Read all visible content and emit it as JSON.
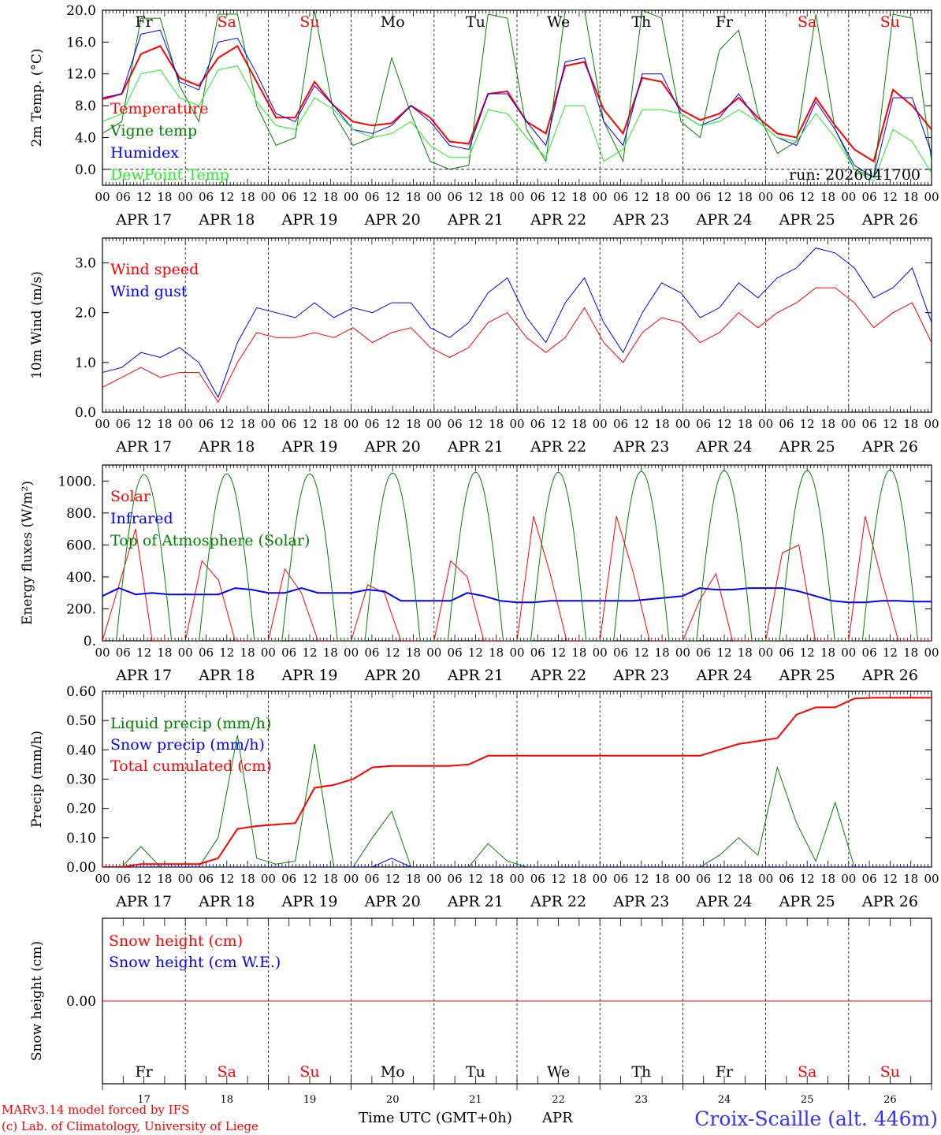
{
  "days": [
    {
      "abbr": "Fr",
      "num": "17",
      "date": "APR 17",
      "weekend": false
    },
    {
      "abbr": "Sa",
      "num": "18",
      "date": "APR 18",
      "weekend": true
    },
    {
      "abbr": "Su",
      "num": "19",
      "date": "APR 19",
      "weekend": true
    },
    {
      "abbr": "Mo",
      "num": "20",
      "date": "APR 20",
      "weekend": false
    },
    {
      "abbr": "Tu",
      "num": "21",
      "date": "APR 21",
      "weekend": false
    },
    {
      "abbr": "We",
      "num": "22",
      "date": "APR 22",
      "weekend": false
    },
    {
      "abbr": "Th",
      "num": "23",
      "date": "APR 23",
      "weekend": false
    },
    {
      "abbr": "Fr",
      "num": "24",
      "date": "APR 24",
      "weekend": false
    },
    {
      "abbr": "Sa",
      "num": "25",
      "date": "APR 25",
      "weekend": true
    },
    {
      "abbr": "Su",
      "num": "26",
      "date": "APR 26",
      "weekend": true
    }
  ],
  "hour_labels": [
    "00",
    "06",
    "12",
    "18"
  ],
  "final_hour_label": "00",
  "colors": {
    "red": "#ff0000",
    "green": "#008000",
    "blue": "#0000ff",
    "light_green": "#22ee22",
    "weekend": "#ff0000",
    "text": "#000000",
    "station": "#3333ff"
  },
  "footer": {
    "model_line": "MARv3.14 model forced by IFS",
    "credit_line": "(c) Lab. of Climatology, University of Liege",
    "axis_title": "Time UTC (GMT+0h)",
    "month": "APR",
    "station": "Croix-Scaille (alt. 446m)"
  },
  "chart_data": [
    {
      "id": "temperature",
      "type": "line",
      "ylabel": "2m Temp. (°C)",
      "ylim": [
        -2,
        20
      ],
      "yticks": [
        "0.0",
        "4.0",
        "8.0",
        "12.0",
        "16.0",
        "20.0"
      ],
      "ytick_values": [
        0,
        4,
        8,
        12,
        16,
        20
      ],
      "show_day_abbr": true,
      "annotation": "run: 2026041700",
      "zero_line": true,
      "x_step_hours": 6,
      "series": [
        {
          "name": "Temperature",
          "color": "#ff0000",
          "width": 2,
          "values": [
            8.8,
            9.5,
            14.5,
            15.5,
            11.5,
            10.5,
            14.0,
            15.5,
            11.0,
            6.5,
            6.5,
            11.0,
            8.0,
            6.0,
            5.5,
            5.8,
            8.0,
            6.5,
            3.5,
            3.2,
            9.5,
            9.8,
            6.0,
            4.5,
            13.0,
            13.5,
            7.5,
            4.5,
            11.5,
            11.0,
            7.5,
            6.2,
            7.0,
            9.0,
            6.5,
            4.5,
            4.0,
            9.0,
            5.5,
            2.5,
            1.0,
            10.0,
            8.0,
            5.0
          ]
        },
        {
          "name": "Vigne temp",
          "color": "#008000",
          "width": 1,
          "values": [
            4.5,
            6.0,
            19.0,
            19.0,
            10.5,
            6.0,
            19.5,
            19.5,
            8.0,
            3.0,
            4.0,
            20.0,
            7.0,
            3.0,
            4.0,
            14.0,
            7.0,
            1.0,
            0.0,
            0.5,
            19.5,
            19.0,
            5.0,
            1.0,
            20.0,
            20.0,
            6.0,
            1.0,
            20.0,
            19.0,
            6.0,
            4.0,
            15.0,
            17.5,
            7.0,
            2.0,
            3.5,
            19.5,
            5.0,
            0.0,
            -1.0,
            19.5,
            19.0,
            1.0
          ]
        },
        {
          "name": "Humidex",
          "color": "#0000ff",
          "width": 1,
          "values": [
            9.0,
            9.5,
            17.0,
            17.5,
            11.0,
            10.0,
            16.0,
            16.5,
            12.0,
            7.0,
            6.0,
            10.5,
            8.0,
            5.0,
            4.5,
            5.5,
            8.0,
            6.0,
            3.0,
            2.5,
            9.5,
            9.5,
            6.0,
            3.0,
            13.5,
            14.0,
            6.0,
            3.0,
            12.0,
            12.0,
            7.0,
            5.5,
            6.5,
            9.5,
            6.0,
            4.0,
            3.0,
            8.5,
            5.0,
            0.5,
            -1.0,
            9.0,
            9.0,
            2.0
          ]
        },
        {
          "name": "DewPoint Temp",
          "color": "#22ee22",
          "width": 1,
          "values": [
            6.0,
            7.0,
            12.0,
            12.5,
            9.0,
            8.0,
            12.5,
            13.0,
            8.5,
            5.5,
            5.0,
            9.0,
            7.5,
            5.0,
            4.0,
            4.5,
            6.0,
            3.0,
            1.5,
            1.5,
            7.5,
            7.0,
            4.0,
            1.5,
            8.0,
            8.0,
            1.0,
            2.5,
            7.5,
            7.5,
            7.0,
            5.5,
            6.0,
            7.5,
            6.0,
            4.0,
            3.5,
            7.0,
            4.0,
            0.0,
            -1.5,
            5.0,
            3.5,
            -0.5
          ]
        }
      ]
    },
    {
      "id": "wind",
      "type": "line",
      "ylabel": "10m Wind (m/s)",
      "ylim": [
        0,
        3.5
      ],
      "yticks": [
        "0.0",
        "1.0",
        "2.0",
        "3.0"
      ],
      "ytick_values": [
        0,
        1,
        2,
        3
      ],
      "x_step_hours": 6,
      "series": [
        {
          "name": "Wind speed",
          "color": "#ff0000",
          "width": 1,
          "values": [
            0.5,
            0.7,
            0.9,
            0.7,
            0.8,
            0.8,
            0.2,
            1.0,
            1.6,
            1.5,
            1.5,
            1.6,
            1.5,
            1.7,
            1.4,
            1.6,
            1.7,
            1.3,
            1.1,
            1.3,
            1.8,
            2.0,
            1.5,
            1.2,
            1.5,
            2.1,
            1.4,
            1.0,
            1.6,
            1.9,
            1.8,
            1.4,
            1.6,
            2.0,
            1.7,
            2.0,
            2.2,
            2.5,
            2.5,
            2.2,
            1.7,
            2.0,
            2.2,
            1.4
          ]
        },
        {
          "name": "Wind gust",
          "color": "#0000ff",
          "width": 1,
          "values": [
            0.8,
            0.9,
            1.2,
            1.1,
            1.3,
            1.0,
            0.3,
            1.4,
            2.1,
            2.0,
            1.9,
            2.2,
            1.9,
            2.1,
            2.0,
            2.2,
            2.2,
            1.7,
            1.5,
            1.8,
            2.4,
            2.7,
            1.9,
            1.4,
            2.2,
            2.7,
            1.8,
            1.2,
            2.0,
            2.6,
            2.4,
            1.9,
            2.1,
            2.6,
            2.3,
            2.7,
            2.9,
            3.3,
            3.2,
            2.9,
            2.3,
            2.5,
            2.9,
            1.8
          ]
        }
      ]
    },
    {
      "id": "energy",
      "type": "line",
      "ylabel": "Energy fluxes (W/m²)",
      "ylim": [
        0,
        1100
      ],
      "yticks": [
        "0.",
        "200.",
        "400.",
        "600.",
        "800.",
        "1000."
      ],
      "ytick_values": [
        0,
        200,
        400,
        600,
        800,
        1000
      ],
      "x_step_hours": 6,
      "series": [
        {
          "name": "Solar",
          "color": "#ff0000",
          "width": 1,
          "values": [
            0,
            350,
            700,
            0,
            0,
            0,
            500,
            380,
            0,
            0,
            0,
            450,
            300,
            0,
            0,
            0,
            350,
            300,
            0,
            0,
            0,
            500,
            400,
            0,
            0,
            0,
            780,
            420,
            0,
            0,
            0,
            780,
            430,
            0,
            0,
            0,
            250,
            420,
            0,
            0,
            0,
            550,
            600,
            0,
            0,
            0,
            780,
            380,
            0,
            0,
            0
          ]
        },
        {
          "name": "Infrared",
          "color": "#0000ff",
          "width": 2,
          "values": [
            280,
            330,
            290,
            300,
            290,
            290,
            290,
            290,
            330,
            320,
            300,
            300,
            330,
            300,
            300,
            300,
            320,
            310,
            250,
            250,
            250,
            250,
            300,
            280,
            250,
            240,
            240,
            250,
            250,
            250,
            250,
            250,
            250,
            260,
            270,
            280,
            330,
            320,
            320,
            330,
            330,
            330,
            310,
            280,
            250,
            240,
            240,
            250,
            250,
            245,
            245
          ]
        },
        {
          "name": "Top of Atmosphere (Solar)",
          "color": "#008000",
          "width": 1,
          "values": [
            0,
            0,
            1040,
            0,
            0,
            0,
            1045,
            0,
            0,
            0,
            1045,
            0,
            0,
            0,
            1050,
            0,
            0,
            0,
            1055,
            0,
            0,
            0,
            1055,
            0,
            0,
            0,
            1060,
            0,
            0,
            0,
            1065,
            0,
            0,
            0,
            1065,
            0,
            0,
            0,
            1070,
            0,
            0
          ]
        }
      ]
    },
    {
      "id": "precip",
      "type": "line",
      "ylabel": "Precip (mm/h)",
      "ylim": [
        0,
        0.6
      ],
      "yticks": [
        "0.00",
        "0.10",
        "0.20",
        "0.30",
        "0.40",
        "0.50",
        "0.60"
      ],
      "ytick_values": [
        0,
        0.1,
        0.2,
        0.3,
        0.4,
        0.5,
        0.6
      ],
      "x_step_hours": 6,
      "series": [
        {
          "name": "Liquid precip (mm/h)",
          "color": "#008000",
          "width": 1,
          "values": [
            0,
            0,
            0.07,
            0,
            0,
            0,
            0.1,
            0.45,
            0.03,
            0.01,
            0.02,
            0.42,
            0,
            0,
            0.1,
            0.19,
            0,
            0,
            0,
            0,
            0.08,
            0.02,
            0,
            0,
            0,
            0,
            0,
            0,
            0,
            0,
            0,
            0,
            0.04,
            0.1,
            0.04,
            0.34,
            0.15,
            0.02,
            0.22,
            0,
            0,
            0,
            0,
            0
          ]
        },
        {
          "name": "Snow precip (mm/h)",
          "color": "#0000ff",
          "width": 1,
          "values": [
            0,
            0,
            0,
            0,
            0,
            0,
            0,
            0,
            0,
            0,
            0,
            0,
            0,
            0,
            0,
            0.03,
            0,
            0,
            0,
            0,
            0,
            0,
            0,
            0,
            0,
            0,
            0,
            0,
            0,
            0,
            0,
            0,
            0,
            0,
            0,
            0,
            0,
            0,
            0,
            0,
            0,
            0,
            0,
            0
          ]
        },
        {
          "name": "Total cumulated (cm)",
          "color": "#ff0000",
          "width": 2,
          "values": [
            0,
            0,
            0.01,
            0.01,
            0.01,
            0.01,
            0.03,
            0.13,
            0.14,
            0.145,
            0.15,
            0.27,
            0.28,
            0.3,
            0.34,
            0.345,
            0.345,
            0.345,
            0.345,
            0.35,
            0.38,
            0.38,
            0.38,
            0.38,
            0.38,
            0.38,
            0.38,
            0.38,
            0.38,
            0.38,
            0.38,
            0.38,
            0.4,
            0.42,
            0.43,
            0.44,
            0.52,
            0.545,
            0.545,
            0.575,
            0.578,
            0.578,
            0.578,
            0.578
          ]
        }
      ]
    },
    {
      "id": "snow",
      "type": "line",
      "ylabel": "Snow height (cm)",
      "ylim": [
        -1,
        1
      ],
      "yticks": [
        "0.00"
      ],
      "ytick_values": [
        0
      ],
      "x_step_hours": 6,
      "show_day_abbr_bottom": true,
      "series": [
        {
          "name": "Snow height (cm)",
          "color": "#ff0000",
          "width": 1,
          "values": [
            0,
            0
          ]
        },
        {
          "name": "Snow height (cm W.E.)",
          "color": "#0000ff",
          "width": 0,
          "values": [
            0,
            0
          ]
        }
      ]
    }
  ]
}
